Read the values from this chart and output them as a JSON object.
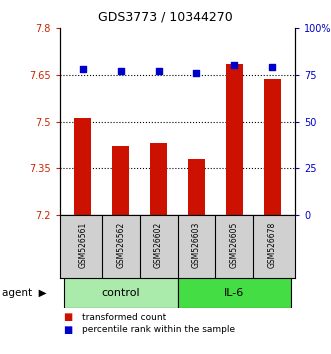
{
  "title": "GDS3773 / 10344270",
  "samples": [
    "GSM526561",
    "GSM526562",
    "GSM526602",
    "GSM526603",
    "GSM526605",
    "GSM526678"
  ],
  "bar_values": [
    7.51,
    7.42,
    7.43,
    7.38,
    7.685,
    7.635
  ],
  "percentile_values": [
    78,
    77,
    77,
    76,
    80,
    79
  ],
  "bar_color": "#cc1100",
  "dot_color": "#0000cc",
  "ylim_left": [
    7.2,
    7.8
  ],
  "ylim_right": [
    0,
    100
  ],
  "yticks_left": [
    7.2,
    7.35,
    7.5,
    7.65,
    7.8
  ],
  "yticks_right": [
    0,
    25,
    50,
    75,
    100
  ],
  "yticklabels_right": [
    "0",
    "25",
    "50",
    "75",
    "100%"
  ],
  "hlines": [
    7.35,
    7.5,
    7.65
  ],
  "groups": [
    {
      "label": "control",
      "indices": [
        0,
        1,
        2
      ],
      "color": "#aaeaaa"
    },
    {
      "label": "IL-6",
      "indices": [
        3,
        4,
        5
      ],
      "color": "#44dd44"
    }
  ],
  "bar_width": 0.45,
  "background_color": "#ffffff",
  "sample_box_color": "#d0d0d0",
  "legend_items": [
    {
      "color": "#cc1100",
      "label": "transformed count"
    },
    {
      "color": "#0000cc",
      "label": "percentile rank within the sample"
    }
  ]
}
